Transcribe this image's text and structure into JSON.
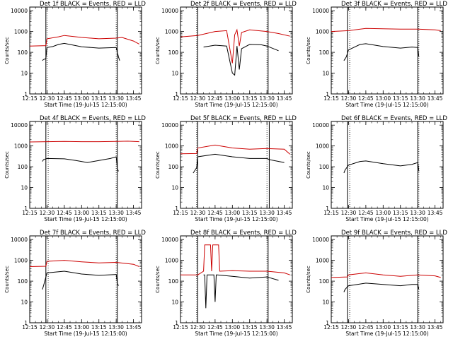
{
  "chart_data": [
    {
      "type": "line",
      "title": "Det 1f BLACK = Events, RED = LLD",
      "xlabel": "Start Time (19-Jul-15 12:15:00)",
      "ylabel": "Counts/sec",
      "x_ticks": [
        "12:15",
        "12:30",
        "12:45",
        "13:00",
        "13:15",
        "13:30",
        "13:45"
      ],
      "y_ticks": [
        "1",
        "10",
        "100",
        "1000",
        "10000"
      ],
      "ylim": [
        1,
        15000
      ],
      "y_scale": "log",
      "markers": [
        "12:29",
        "13:31"
      ],
      "dotted_markers": [
        "12:30",
        "13:30"
      ],
      "series": [
        {
          "name": "Events",
          "color": "#000000",
          "x": [
            "12:26",
            "12:27",
            "12:29",
            "12:30",
            "12:35",
            "12:40",
            "12:45",
            "13:00",
            "13:15",
            "13:30",
            "13:32",
            "13:33"
          ],
          "values": [
            40,
            45,
            50,
            170,
            190,
            240,
            270,
            185,
            160,
            170,
            60,
            40
          ]
        },
        {
          "name": "LLD",
          "color": "#cc0000",
          "x": [
            "12:15",
            "12:29",
            "12:30",
            "12:40",
            "12:45",
            "13:00",
            "13:15",
            "13:30",
            "13:35",
            "13:45",
            "13:50"
          ],
          "values": [
            200,
            210,
            450,
            560,
            650,
            520,
            450,
            480,
            520,
            350,
            250
          ]
        }
      ]
    },
    {
      "type": "line",
      "title": "Det 2f BLACK = Events, RED = LLD",
      "xlabel": "Start Time (19-Jul-15 12:15:00)",
      "ylabel": "Counts/sec",
      "x_ticks": [
        "12:15",
        "12:30",
        "12:45",
        "13:00",
        "13:15",
        "13:30",
        "13:45"
      ],
      "y_ticks": [
        "1",
        "10",
        "100",
        "1000",
        "10000"
      ],
      "ylim": [
        1,
        15000
      ],
      "y_scale": "log",
      "markers": [
        "12:30",
        "13:31"
      ],
      "dotted_markers": [
        "12:29",
        "13:30"
      ],
      "series": [
        {
          "name": "Events",
          "color": "#000000",
          "x": [
            "12:35",
            "12:45",
            "12:55",
            "13:00",
            "13:02",
            "13:04",
            "13:06",
            "13:08",
            "13:15",
            "13:25",
            "13:30",
            "13:40"
          ],
          "values": [
            180,
            220,
            200,
            10,
            8,
            200,
            15,
            150,
            240,
            230,
            200,
            120
          ]
        },
        {
          "name": "LLD",
          "color": "#cc0000",
          "x": [
            "12:15",
            "12:30",
            "12:45",
            "12:55",
            "13:00",
            "13:02",
            "13:04",
            "13:06",
            "13:08",
            "13:15",
            "13:30",
            "13:40",
            "13:50"
          ],
          "values": [
            550,
            650,
            1000,
            1100,
            30,
            700,
            1200,
            200,
            900,
            1200,
            1000,
            800,
            600
          ]
        }
      ]
    },
    {
      "type": "line",
      "title": "Det 3f BLACK = Events, RED = LLD",
      "xlabel": "Start Time (19-Jul-15 12:15:00)",
      "ylabel": "Counts/sec",
      "x_ticks": [
        "12:15",
        "12:30",
        "12:45",
        "13:00",
        "13:15",
        "13:30",
        "13:45"
      ],
      "y_ticks": [
        "1",
        "10",
        "100",
        "1000",
        "10000"
      ],
      "ylim": [
        1,
        15000
      ],
      "y_scale": "log",
      "markers": [
        "12:29",
        "13:30"
      ],
      "dotted_markers": [
        "12:31",
        "13:31"
      ],
      "series": [
        {
          "name": "Events",
          "color": "#000000",
          "x": [
            "12:26",
            "12:28",
            "12:30",
            "12:40",
            "12:45",
            "13:00",
            "13:15",
            "13:25",
            "13:30",
            "13:31"
          ],
          "values": [
            40,
            60,
            130,
            240,
            260,
            190,
            160,
            180,
            170,
            60
          ]
        },
        {
          "name": "LLD",
          "color": "#cc0000",
          "x": [
            "12:15",
            "12:30",
            "12:45",
            "13:00",
            "13:15",
            "13:30",
            "13:45",
            "13:50"
          ],
          "values": [
            1000,
            1100,
            1400,
            1350,
            1300,
            1300,
            1200,
            1100
          ]
        }
      ]
    },
    {
      "type": "line",
      "title": "Det 4f BLACK = Events, RED = LLD",
      "xlabel": "Start Time (19-Jul-15 12:15:00)",
      "ylabel": "Counts/sec",
      "x_ticks": [
        "12:15",
        "12:30",
        "12:45",
        "13:00",
        "13:15",
        "13:30",
        "13:45"
      ],
      "y_ticks": [
        "1",
        "10",
        "100",
        "1000",
        "10000"
      ],
      "ylim": [
        1,
        15000
      ],
      "y_scale": "log",
      "markers": [
        "12:29",
        "13:31"
      ],
      "dotted_markers": [
        "12:31",
        "13:30"
      ],
      "series": [
        {
          "name": "Events",
          "color": "#000000",
          "x": [
            "12:26",
            "12:27",
            "12:30",
            "12:45",
            "12:55",
            "13:05",
            "13:15",
            "13:25",
            "13:30",
            "13:31",
            "13:32"
          ],
          "values": [
            180,
            220,
            250,
            240,
            200,
            160,
            200,
            250,
            300,
            80,
            60
          ]
        },
        {
          "name": "LLD",
          "color": "#cc0000",
          "x": [
            "12:15",
            "12:30",
            "12:45",
            "13:00",
            "13:15",
            "13:30",
            "13:40",
            "13:50"
          ],
          "values": [
            1550,
            1600,
            1650,
            1600,
            1600,
            1650,
            1700,
            1600
          ]
        }
      ]
    },
    {
      "type": "line",
      "title": "Det 5f BLACK = Events, RED = LLD",
      "xlabel": "Start Time (19-Jul-15 12:15:00)",
      "ylabel": "Counts/sec",
      "x_ticks": [
        "12:15",
        "12:30",
        "12:45",
        "13:00",
        "13:15",
        "13:30",
        "13:45"
      ],
      "y_ticks": [
        "1",
        "10",
        "100",
        "1000",
        "10000"
      ],
      "ylim": [
        1,
        15000
      ],
      "y_scale": "log",
      "markers": [
        "12:30",
        "13:32"
      ],
      "dotted_markers": [
        "12:29",
        "13:30"
      ],
      "series": [
        {
          "name": "Events",
          "color": "#000000",
          "x": [
            "12:26",
            "12:27",
            "12:29",
            "12:30",
            "12:45",
            "13:00",
            "13:15",
            "13:30",
            "13:32",
            "13:45"
          ],
          "values": [
            50,
            60,
            90,
            300,
            400,
            300,
            250,
            250,
            220,
            160
          ]
        },
        {
          "name": "LLD",
          "color": "#cc0000",
          "x": [
            "12:15",
            "12:29",
            "12:30",
            "12:45",
            "13:00",
            "13:15",
            "13:30",
            "13:45",
            "13:50"
          ],
          "values": [
            420,
            430,
            800,
            1100,
            800,
            700,
            750,
            700,
            400
          ]
        }
      ]
    },
    {
      "type": "line",
      "title": "Det 6f BLACK = Events, RED = LLD",
      "xlabel": "Start Time (19-Jul-15 12:15:00)",
      "ylabel": "Counts/sec",
      "x_ticks": [
        "12:15",
        "12:30",
        "12:45",
        "13:00",
        "13:15",
        "13:30",
        "13:45"
      ],
      "y_ticks": [
        "1",
        "10",
        "100",
        "1000",
        "10000"
      ],
      "ylim": [
        1,
        15000
      ],
      "y_scale": "log",
      "markers": [
        "12:29",
        "13:30"
      ],
      "dotted_markers": [
        "12:31",
        "13:31"
      ],
      "series": [
        {
          "name": "Events",
          "color": "#000000",
          "x": [
            "12:26",
            "12:27",
            "12:30",
            "12:40",
            "12:45",
            "13:00",
            "13:15",
            "13:25",
            "13:30",
            "13:31"
          ],
          "values": [
            50,
            70,
            120,
            180,
            190,
            140,
            110,
            130,
            160,
            60
          ]
        }
      ]
    },
    {
      "type": "line",
      "title": "Det 7f BLACK = Events, RED = LLD",
      "xlabel": "Start Time (19-Jul-15 12:15:00)",
      "ylabel": "Counts/sec",
      "x_ticks": [
        "12:15",
        "12:30",
        "12:45",
        "13:00",
        "13:15",
        "13:30",
        "13:45"
      ],
      "y_ticks": [
        "1",
        "10",
        "100",
        "1000",
        "10000"
      ],
      "ylim": [
        1,
        15000
      ],
      "y_scale": "log",
      "markers": [
        "12:29",
        "13:31"
      ],
      "dotted_markers": [
        "12:31",
        "13:30"
      ],
      "series": [
        {
          "name": "Events",
          "color": "#000000",
          "x": [
            "12:26",
            "12:27",
            "12:30",
            "12:45",
            "13:00",
            "13:15",
            "13:30",
            "13:31",
            "13:32"
          ],
          "values": [
            40,
            60,
            250,
            300,
            220,
            190,
            210,
            80,
            60
          ]
        },
        {
          "name": "LLD",
          "color": "#cc0000",
          "x": [
            "12:15",
            "12:29",
            "12:30",
            "12:45",
            "13:00",
            "13:15",
            "13:30",
            "13:45",
            "13:50"
          ],
          "values": [
            500,
            520,
            900,
            1000,
            850,
            750,
            800,
            650,
            500
          ]
        }
      ]
    },
    {
      "type": "line",
      "title": "Det 8f BLACK = Events, RED = LLD",
      "xlabel": "Start Time (19-Jul-15 12:15:00)",
      "ylabel": "Counts/sec",
      "x_ticks": [
        "12:15",
        "12:30",
        "12:45",
        "13:00",
        "13:15",
        "13:30",
        "13:45"
      ],
      "y_ticks": [
        "1",
        "10",
        "100",
        "1000",
        "10000"
      ],
      "ylim": [
        1,
        15000
      ],
      "y_scale": "log",
      "markers": [
        "12:30",
        "13:31"
      ],
      "dotted_markers": [
        "12:29",
        "13:30"
      ],
      "series": [
        {
          "name": "Events",
          "color": "#000000",
          "x": [
            "12:35",
            "12:36",
            "12:37",
            "12:38",
            "12:39",
            "12:44",
            "12:45",
            "12:46",
            "12:47",
            "13:00",
            "13:15",
            "13:30",
            "13:40"
          ],
          "values": [
            200,
            200,
            5,
            200,
            200,
            200,
            10,
            200,
            200,
            170,
            140,
            160,
            110
          ]
        },
        {
          "name": "LLD",
          "color": "#cc0000",
          "x": [
            "12:15",
            "12:30",
            "12:35",
            "12:36",
            "12:41",
            "12:42",
            "12:43",
            "12:48",
            "12:49",
            "13:00",
            "13:15",
            "13:30",
            "13:45",
            "13:50"
          ],
          "values": [
            200,
            200,
            300,
            5500,
            5500,
            300,
            5500,
            5500,
            300,
            320,
            300,
            300,
            250,
            200
          ]
        }
      ]
    },
    {
      "type": "line",
      "title": "Det 9f BLACK = Events, RED = LLD",
      "xlabel": "Start Time (19-Jul-15 12:15:00)",
      "ylabel": "Counts/sec",
      "x_ticks": [
        "12:15",
        "12:30",
        "12:45",
        "13:00",
        "13:15",
        "13:30",
        "13:45"
      ],
      "y_ticks": [
        "1",
        "10",
        "100",
        "1000",
        "10000"
      ],
      "ylim": [
        1,
        15000
      ],
      "y_scale": "log",
      "markers": [
        "12:29",
        "13:30"
      ],
      "dotted_markers": [
        "12:31",
        "13:31"
      ],
      "series": [
        {
          "name": "Events",
          "color": "#000000",
          "x": [
            "12:26",
            "12:27",
            "12:30",
            "12:45",
            "13:00",
            "13:15",
            "13:25",
            "13:30",
            "13:31"
          ],
          "values": [
            30,
            40,
            60,
            80,
            70,
            60,
            70,
            70,
            40
          ]
        },
        {
          "name": "LLD",
          "color": "#cc0000",
          "x": [
            "12:15",
            "12:29",
            "12:30",
            "12:45",
            "13:00",
            "13:15",
            "13:30",
            "13:45",
            "13:50"
          ],
          "values": [
            150,
            160,
            200,
            250,
            200,
            170,
            200,
            180,
            150
          ]
        }
      ]
    }
  ]
}
